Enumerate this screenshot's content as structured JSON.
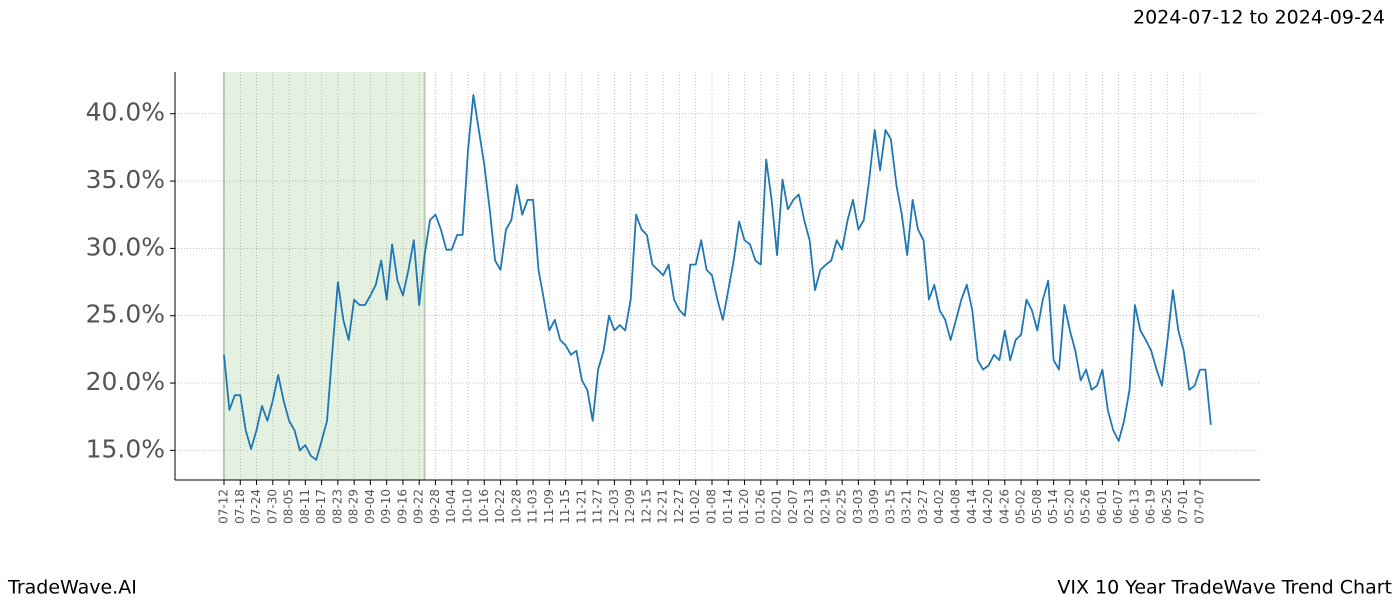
{
  "chart_data": {
    "type": "line",
    "date_range": "2024-07-12 to 2024-09-24",
    "footer_left": "TradeWave.AI",
    "footer_right": "VIX 10 Year TradeWave Trend Chart",
    "categories": [
      "07-12",
      null,
      null,
      "07-18",
      null,
      null,
      "07-24",
      null,
      null,
      "07-30",
      null,
      null,
      "08-05",
      null,
      null,
      "08-11",
      null,
      null,
      "08-17",
      null,
      null,
      "08-23",
      null,
      null,
      "08-29",
      null,
      null,
      "09-04",
      null,
      null,
      "09-10",
      null,
      null,
      "09-16",
      null,
      null,
      "09-22",
      null,
      null,
      "09-28",
      null,
      null,
      "10-04",
      null,
      null,
      "10-10",
      null,
      null,
      "10-16",
      null,
      null,
      "10-22",
      null,
      null,
      "10-28",
      null,
      null,
      "11-03",
      null,
      null,
      "11-09",
      null,
      null,
      "11-15",
      null,
      null,
      "11-21",
      null,
      null,
      "11-27",
      null,
      null,
      "12-03",
      null,
      null,
      "12-09",
      null,
      null,
      "12-15",
      null,
      null,
      "12-21",
      null,
      null,
      "12-27",
      null,
      null,
      "01-02",
      null,
      null,
      "01-08",
      null,
      null,
      "01-14",
      null,
      null,
      "01-20",
      null,
      null,
      "01-26",
      null,
      null,
      "02-01",
      null,
      null,
      "02-07",
      null,
      null,
      "02-13",
      null,
      null,
      "02-19",
      null,
      null,
      "02-25",
      null,
      null,
      "03-03",
      null,
      null,
      "03-09",
      null,
      null,
      "03-15",
      null,
      null,
      "03-21",
      null,
      null,
      "03-27",
      null,
      null,
      "04-02",
      null,
      null,
      "04-08",
      null,
      null,
      "04-14",
      null,
      null,
      "04-20",
      null,
      null,
      "04-26",
      null,
      null,
      "05-02",
      null,
      null,
      "05-08",
      null,
      null,
      "05-14",
      null,
      null,
      "05-20",
      null,
      null,
      "05-26",
      null,
      null,
      "06-01",
      null,
      null,
      "06-07",
      null,
      null,
      "06-13",
      null,
      null,
      "06-19",
      null,
      null,
      "06-25",
      null,
      null,
      "07-01",
      null,
      null,
      "07-07",
      null,
      null
    ],
    "series": [
      {
        "name": "VIX",
        "color": "#1f77b4",
        "values": [
          22.1,
          18.0,
          19.1,
          19.1,
          16.5,
          15.1,
          16.5,
          18.3,
          17.2,
          18.7,
          20.6,
          18.7,
          17.2,
          16.5,
          15.0,
          15.4,
          14.6,
          14.3,
          15.7,
          17.2,
          22.4,
          27.5,
          24.7,
          23.2,
          26.2,
          25.8,
          25.8,
          26.5,
          27.3,
          29.1,
          26.2,
          30.3,
          27.6,
          26.5,
          28.4,
          30.6,
          25.8,
          29.5,
          32.1,
          32.5,
          31.4,
          29.9,
          29.9,
          31.0,
          31.0,
          37.3,
          41.4,
          38.8,
          36.2,
          32.9,
          29.1,
          28.4,
          31.4,
          32.1,
          34.7,
          32.5,
          33.6,
          33.6,
          28.4,
          26.2,
          23.9,
          24.7,
          23.2,
          22.8,
          22.1,
          22.4,
          20.2,
          19.5,
          17.2,
          21.0,
          22.4,
          25.0,
          23.9,
          24.3,
          23.9,
          26.2,
          32.5,
          31.4,
          31.0,
          28.8,
          28.4,
          28.0,
          28.8,
          26.2,
          25.4,
          25.0,
          28.8,
          28.8,
          30.6,
          28.4,
          28.0,
          26.2,
          24.7,
          26.9,
          29.1,
          32.0,
          30.6,
          30.3,
          29.1,
          28.8,
          36.6,
          33.6,
          29.5,
          35.1,
          32.9,
          33.6,
          34.0,
          32.1,
          30.6,
          26.9,
          28.4,
          28.8,
          29.1,
          30.6,
          29.9,
          32.1,
          33.6,
          31.4,
          32.1,
          35.1,
          38.8,
          35.8,
          38.8,
          38.1,
          34.7,
          32.5,
          29.5,
          33.6,
          31.4,
          30.6,
          26.2,
          27.3,
          25.4,
          24.7,
          23.2,
          24.7,
          26.2,
          27.3,
          25.4,
          21.7,
          21.0,
          21.3,
          22.1,
          21.7,
          23.9,
          21.7,
          23.2,
          23.6,
          26.2,
          25.4,
          23.9,
          26.2,
          27.6,
          21.7,
          21.0,
          25.8,
          23.9,
          22.4,
          20.2,
          21.0,
          19.5,
          19.8,
          21.0,
          18.0,
          16.5,
          15.7,
          17.2,
          19.5,
          25.8,
          23.9,
          23.2,
          22.4,
          21.0,
          19.8,
          23.2,
          26.9,
          23.9,
          22.4,
          19.5,
          19.8,
          21.0,
          21.0,
          16.9
        ]
      }
    ],
    "ylim": [
      12.8,
      43.1
    ],
    "yticks": [
      {
        "value": 15,
        "label": "15.0%"
      },
      {
        "value": 20,
        "label": "20.0%"
      },
      {
        "value": 25,
        "label": "25.0%"
      },
      {
        "value": 30,
        "label": "30.0%"
      },
      {
        "value": 35,
        "label": "35.0%"
      },
      {
        "value": 40,
        "label": "40.0%"
      }
    ],
    "highlight_span": [
      0,
      37
    ],
    "highlight_color": "#d9ead3",
    "grid": true
  }
}
